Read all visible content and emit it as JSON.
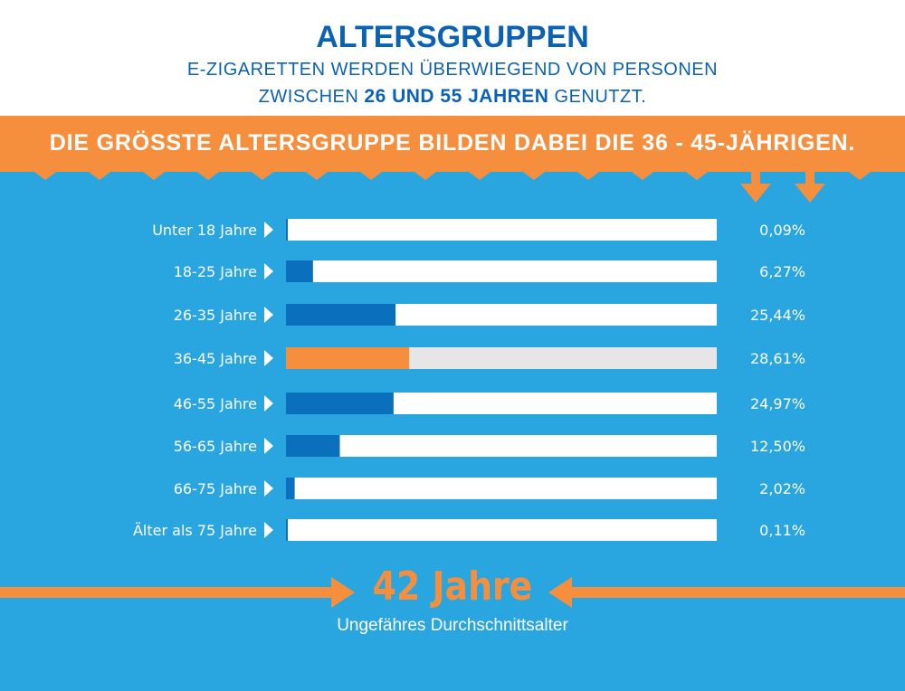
{
  "header": {
    "title": "ALTERSGRUPPEN",
    "subtitle_line1": "E-ZIGARETTEN WERDEN ÜBERWIEGEND VON PERSONEN",
    "subtitle_line2_pre": "ZWISCHEN ",
    "subtitle_line2_a": "26",
    "subtitle_line2_mid": " UND ",
    "subtitle_line2_b": "55 JAHREN",
    "subtitle_line2_post": " GENUTZT."
  },
  "highlight": "DIE GRÖSSTE ALTERSGRUPPE BILDEN DABEI DIE 36 - 45-JÄHRIGEN.",
  "chart_data": {
    "type": "bar",
    "orientation": "horizontal",
    "categories": [
      "Unter 18 Jahre",
      "18-25 Jahre",
      "26-35 Jahre",
      "36-45 Jahre",
      "46-55 Jahre",
      "56-65 Jahre",
      "66-75 Jahre",
      "Älter als 75 Jahre"
    ],
    "values": [
      0.09,
      6.27,
      25.44,
      28.61,
      24.97,
      12.5,
      2.02,
      0.11
    ],
    "value_labels": [
      "0,09%",
      "6,27%",
      "25,44%",
      "28,61%",
      "24,97%",
      "12,50%",
      "2,02%",
      "0,11%"
    ],
    "highlight_index": 3,
    "xlim": [
      0,
      100
    ]
  },
  "average": {
    "value": "42 Jahre",
    "caption": "Ungefähres Durchschnittsalter"
  },
  "colors": {
    "title_blue": "#0b62b3",
    "background_blue": "#29a6e0",
    "bar_blue": "#0a6fbd",
    "accent_orange": "#f68f3d",
    "track_white": "#ffffff",
    "track_highlight": "#e6e6e6"
  }
}
